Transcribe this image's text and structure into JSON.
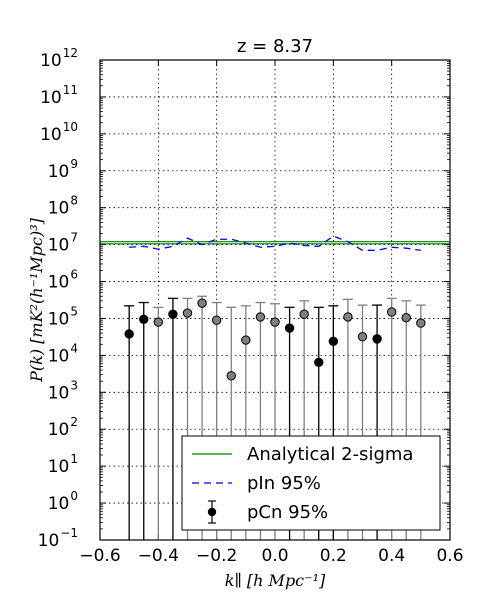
{
  "chart_data": {
    "type": "scatter",
    "title": "z = 8.37",
    "xlabel": "k∥  [h Mpc⁻¹]",
    "ylabel": "P(k)  [mK²(h⁻¹Mpc)³]",
    "xlim": [
      -0.6,
      0.6
    ],
    "ylim_log10": [
      -1,
      12
    ],
    "yscale": "log",
    "grid": true,
    "legend_position": "lower-right",
    "x_ticks": [
      "−0.6",
      "−0.4",
      "−0.2",
      "0.0",
      "0.2",
      "0.4",
      "0.6"
    ],
    "y_tick_exponents": [
      "-1",
      "0",
      "1",
      "2",
      "3",
      "4",
      "5",
      "6",
      "7",
      "8",
      "9",
      "10",
      "11",
      "12"
    ],
    "y_tick_base": "10",
    "series": [
      {
        "name": "Analytical 2-sigma",
        "kind": "hline",
        "color": "#008000",
        "y_values": [
          12000000,
          10500000
        ]
      },
      {
        "name": "pIn 95%",
        "kind": "dashed-line",
        "color": "#0000ff",
        "x": [
          -0.5,
          -0.45,
          -0.4,
          -0.35,
          -0.3,
          -0.25,
          -0.2,
          -0.15,
          -0.1,
          -0.05,
          0.0,
          0.05,
          0.1,
          0.15,
          0.2,
          0.25,
          0.3,
          0.35,
          0.4,
          0.45,
          0.5
        ],
        "y": [
          8500000,
          9000000,
          7500000,
          9000000,
          15000000,
          10000000,
          14000000,
          14000000,
          11000000,
          8500000,
          9000000,
          11000000,
          9500000,
          9000000,
          17000000,
          12000000,
          7000000,
          7000000,
          8500000,
          8000000,
          7000000
        ]
      },
      {
        "name": "pCn 95%",
        "kind": "errorbar",
        "color": "#000000",
        "x": [
          -0.5,
          -0.45,
          -0.35,
          0.05,
          0.15,
          0.2,
          0.35
        ],
        "y": [
          38000,
          95000,
          130000,
          55000,
          6500,
          24000,
          28000
        ],
        "yerr_upper": [
          220000,
          270000,
          350000,
          200000,
          200000,
          220000,
          230000
        ]
      },
      {
        "name": "",
        "kind": "errorbar",
        "color": "#808080",
        "x": [
          -0.4,
          -0.3,
          -0.25,
          -0.2,
          -0.15,
          -0.1,
          -0.05,
          0.0,
          0.1,
          0.25,
          0.3,
          0.4,
          0.45,
          0.5
        ],
        "y": [
          80000,
          140000,
          260000,
          90000,
          2800,
          26000,
          110000,
          80000,
          130000,
          110000,
          32000,
          150000,
          105000,
          75000
        ],
        "yerr_upper": [
          200000,
          350000,
          400000,
          270000,
          200000,
          220000,
          270000,
          250000,
          300000,
          330000,
          230000,
          350000,
          300000,
          230000
        ]
      }
    ]
  }
}
